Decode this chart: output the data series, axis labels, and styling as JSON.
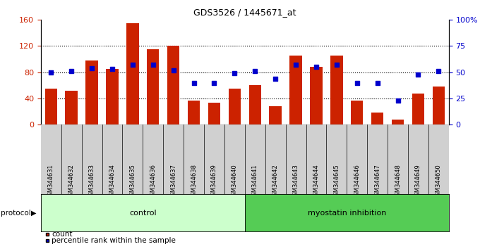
{
  "title": "GDS3526 / 1445671_at",
  "samples": [
    "GSM344631",
    "GSM344632",
    "GSM344633",
    "GSM344634",
    "GSM344635",
    "GSM344636",
    "GSM344637",
    "GSM344638",
    "GSM344639",
    "GSM344640",
    "GSM344641",
    "GSM344642",
    "GSM344643",
    "GSM344644",
    "GSM344645",
    "GSM344646",
    "GSM344647",
    "GSM344648",
    "GSM344649",
    "GSM344650"
  ],
  "counts": [
    55,
    52,
    98,
    85,
    155,
    115,
    120,
    37,
    33,
    55,
    60,
    28,
    105,
    88,
    105,
    37,
    18,
    8,
    47,
    58
  ],
  "pct_ranks": [
    50,
    51,
    54,
    53,
    57,
    57,
    52,
    40,
    40,
    49,
    51,
    44,
    57,
    55,
    57,
    40,
    40,
    23,
    48,
    51
  ],
  "bar_color": "#cc2200",
  "dot_color": "#0000cc",
  "control_color": "#ccffcc",
  "myostatin_color": "#55cc55",
  "n_control": 10,
  "n_myostatin": 10,
  "ylim_left": [
    0,
    160
  ],
  "ylim_right": [
    0,
    100
  ],
  "yticks_left": [
    0,
    40,
    80,
    120,
    160
  ],
  "yticks_right": [
    0,
    25,
    50,
    75,
    100
  ],
  "ytick_labels_right": [
    "0",
    "25",
    "50",
    "75",
    "100%"
  ],
  "grid_lines": [
    40,
    80,
    120
  ],
  "xtick_bg": "#d0d0d0",
  "fig_bg": "#ffffff"
}
